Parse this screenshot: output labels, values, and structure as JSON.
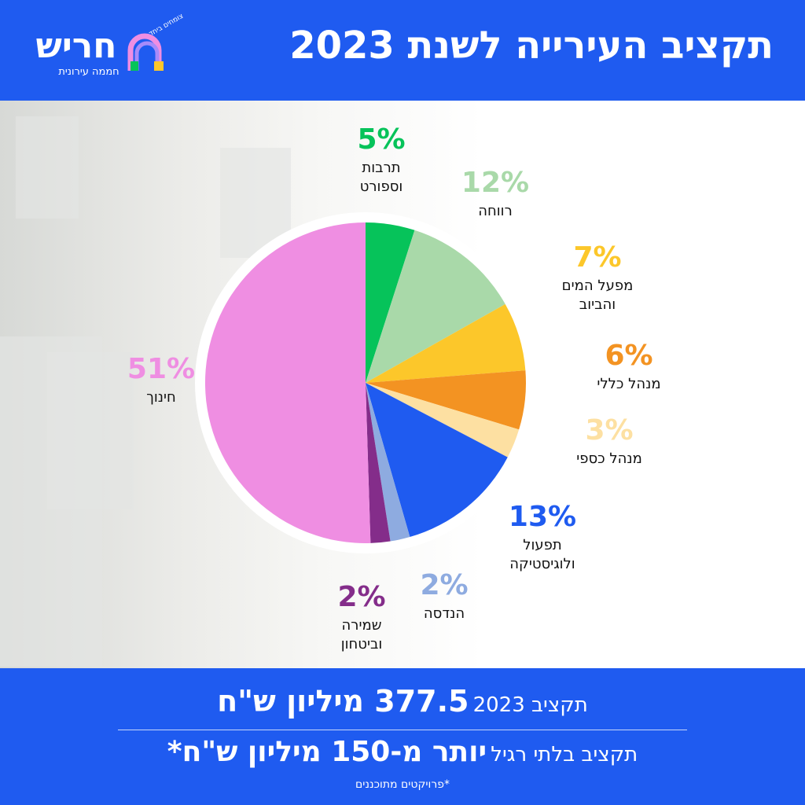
{
  "header": {
    "title": "תקציב העירייה לשנת 2023",
    "logo_name": "חריש",
    "logo_tagline": "חממה עירונית",
    "logo_slogan": "צומחים ביחד"
  },
  "chart_data": {
    "type": "pie",
    "title": "תקציב העירייה לשנת 2023",
    "slices": [
      {
        "label": "תרבות וספורט",
        "line1": "תרבות",
        "line2": "וספורט",
        "value": 5,
        "pct": "5%",
        "color": "#06c35a"
      },
      {
        "label": "רווחה",
        "line1": "רווחה",
        "line2": "",
        "value": 12,
        "pct": "12%",
        "color": "#a9d9a9"
      },
      {
        "label": "מפעל המים והביוב",
        "line1": "מפעל המים",
        "line2": "והביוב",
        "value": 7,
        "pct": "7%",
        "color": "#fcc72a"
      },
      {
        "label": "מנהל כללי",
        "line1": "מנהל כללי",
        "line2": "",
        "value": 6,
        "pct": "6%",
        "color": "#f39322"
      },
      {
        "label": "מנהל כספי",
        "line1": "מנהל כספי",
        "line2": "",
        "value": 3,
        "pct": "3%",
        "color": "#fde0a2"
      },
      {
        "label": "תפעול ולוגיסטיקה",
        "line1": "תפעול",
        "line2": "ולוגיסטיקה",
        "value": 13,
        "pct": "13%",
        "color": "#1f5bf0"
      },
      {
        "label": "הנדסה",
        "line1": "הנדסה",
        "line2": "",
        "value": 2,
        "pct": "2%",
        "color": "#8eabe0"
      },
      {
        "label": "שמירה וביטחון",
        "line1": "שמירה",
        "line2": "וביטחון",
        "value": 2,
        "pct": "2%",
        "color": "#842d8a"
      },
      {
        "label": "חינוך",
        "line1": "חינוך",
        "line2": "",
        "value": 51,
        "pct": "51%",
        "color": "#ef8ee2"
      }
    ]
  },
  "footer": {
    "budget_prefix": "תקציב 2023",
    "budget_amount": "377.5 מיליון ש\"ח",
    "extra_prefix": "תקציב בלתי רגיל",
    "extra_amount": "יותר מ-150 מיליון ש\"ח*",
    "footnote": "*פרויקטים מתוכננים"
  }
}
